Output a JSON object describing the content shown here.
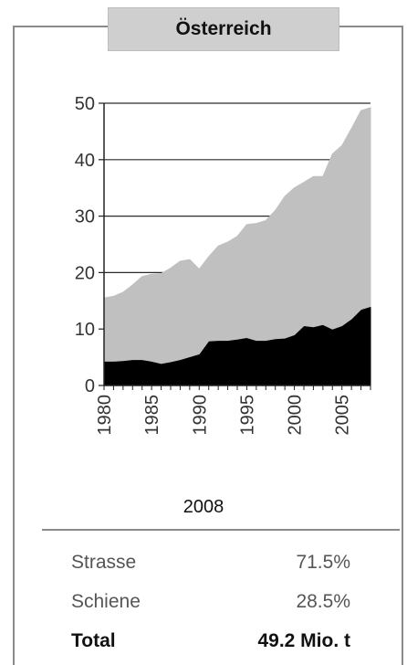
{
  "header": {
    "title": "Österreich"
  },
  "chart_data": {
    "type": "area",
    "stacked": true,
    "x": [
      1980,
      1981,
      1982,
      1983,
      1984,
      1985,
      1986,
      1987,
      1988,
      1989,
      1990,
      1991,
      1992,
      1993,
      1994,
      1995,
      1996,
      1997,
      1998,
      1999,
      2000,
      2001,
      2002,
      2003,
      2004,
      2005,
      2006,
      2007,
      2008
    ],
    "series": [
      {
        "values": [
          4.3,
          4.3,
          4.4,
          4.6,
          4.6,
          4.3,
          3.9,
          4.2,
          4.6,
          5.1,
          5.6,
          7.9,
          8.0,
          8.0,
          8.2,
          8.5,
          8.0,
          8.0,
          8.3,
          8.4,
          9.0,
          10.6,
          10.4,
          10.8,
          10.0,
          10.6,
          11.8,
          13.5,
          14.0
        ],
        "color": "#000000"
      },
      {
        "values": [
          11.2,
          11.5,
          12.1,
          13.2,
          14.7,
          15.4,
          15.9,
          16.6,
          17.4,
          17.2,
          15.0,
          14.9,
          16.7,
          17.4,
          18.2,
          20.0,
          20.7,
          21.2,
          22.7,
          25.1,
          26.0,
          25.4,
          26.6,
          26.2,
          31.0,
          31.9,
          33.7,
          35.2,
          35.2
        ],
        "color": "#c0c0c0"
      }
    ],
    "xticks": [
      "1980",
      "1985",
      "1990",
      "1995",
      "2000",
      "2005"
    ],
    "yticks": [
      "0",
      "10",
      "20",
      "30",
      "40",
      "50"
    ],
    "xlim": [
      1980,
      2008
    ],
    "ylim": [
      0,
      50
    ],
    "grid": "horizontal"
  },
  "summary": {
    "year": "2008",
    "rows": [
      {
        "label": "Strasse",
        "value": "71.5%"
      },
      {
        "label": "Schiene",
        "value": "28.5%"
      }
    ],
    "total": {
      "label": "Total",
      "value": "49.2 Mio. t"
    }
  }
}
